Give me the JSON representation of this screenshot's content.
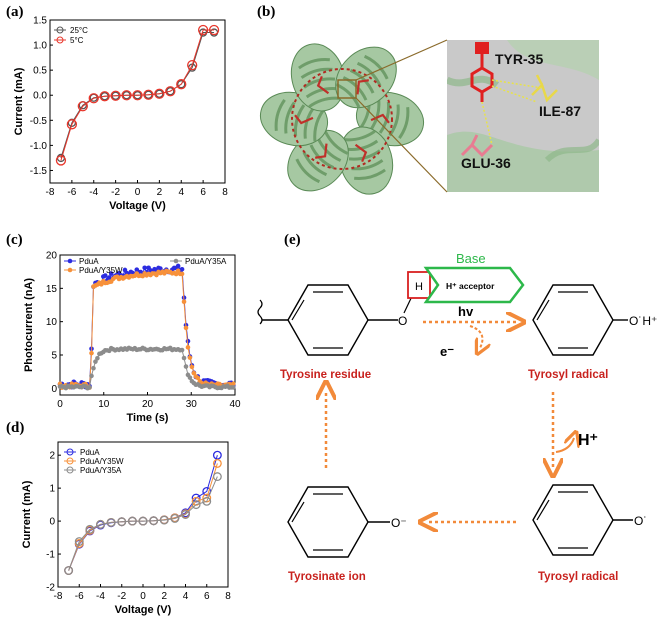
{
  "labels": {
    "a": "(a)",
    "b": "(b)",
    "c": "(c)",
    "d": "(d)",
    "e": "(e)"
  },
  "chart_data": [
    {
      "id": "a",
      "type": "line",
      "xlabel": "Voltage (V)",
      "ylabel": "Current (mA)",
      "xlim": [
        -8,
        8
      ],
      "ylim": [
        -1.75,
        1.5
      ],
      "xticks": [
        -8,
        -6,
        -4,
        -2,
        0,
        2,
        4,
        6,
        8
      ],
      "yticks": [
        -1.5,
        -1.0,
        -0.5,
        0.0,
        0.5,
        1.0,
        1.5
      ],
      "yticklabels": [
        "-1.5",
        "-1.0",
        "-0.5",
        "0.0",
        "0.5",
        "1.0",
        "1.5"
      ],
      "legend": "top-left",
      "x": [
        -7,
        -6,
        -5,
        -4,
        -3,
        -2,
        -1,
        0,
        1,
        2,
        3,
        4,
        5,
        6,
        7
      ],
      "series": [
        {
          "name": "25°C",
          "color": "#555555",
          "values": [
            -1.25,
            -0.55,
            -0.2,
            -0.05,
            -0.02,
            -0.01,
            0.0,
            0.0,
            0.01,
            0.03,
            0.08,
            0.22,
            0.55,
            1.25,
            1.25
          ]
        },
        {
          "name": "5°C",
          "color": "#e8362b",
          "values": [
            -1.3,
            -0.58,
            -0.22,
            -0.06,
            -0.02,
            -0.01,
            0.0,
            0.0,
            0.01,
            0.03,
            0.08,
            0.22,
            0.6,
            1.3,
            1.3
          ]
        }
      ]
    },
    {
      "id": "c",
      "type": "line",
      "xlabel": "Time (s)",
      "ylabel": "Photocurrent (nA)",
      "xlim": [
        0,
        40
      ],
      "ylim": [
        -1,
        20
      ],
      "xticks": [
        0,
        10,
        20,
        30,
        40
      ],
      "yticks": [
        0,
        5,
        10,
        15,
        20
      ],
      "legend": "top",
      "series": [
        {
          "name": "PduA",
          "color": "#2c2ce0",
          "plateau": 18.0,
          "base": 0.6,
          "noise": 0.5
        },
        {
          "name": "PduA/Y35W",
          "color": "#f7913a",
          "plateau": 17.5,
          "base": 0.4,
          "noise": 0.3
        },
        {
          "name": "PduA/Y35A",
          "color": "#8c8c8c",
          "plateau": 5.9,
          "base": 0.2,
          "noise": 0.2
        }
      ],
      "light_on": 7,
      "light_off": 28
    },
    {
      "id": "d",
      "type": "line",
      "xlabel": "Voltage (V)",
      "ylabel": "Current (mA)",
      "xlim": [
        -8,
        8
      ],
      "ylim": [
        -2,
        2.4
      ],
      "xticks": [
        -8,
        -6,
        -4,
        -2,
        0,
        2,
        4,
        6,
        8
      ],
      "yticks": [
        -2,
        -1,
        0,
        1,
        2
      ],
      "legend": "top-left",
      "x": [
        -7,
        -6,
        -5,
        -4,
        -3,
        -2,
        -1,
        0,
        1,
        2,
        3,
        4,
        5,
        6,
        7
      ],
      "series": [
        {
          "name": "PduA",
          "color": "#2c2ce0",
          "values": [
            -1.5,
            -0.7,
            -0.3,
            -0.12,
            -0.05,
            -0.02,
            0.0,
            0.0,
            0.01,
            0.04,
            0.1,
            0.25,
            0.7,
            0.9,
            2.0
          ]
        },
        {
          "name": "PduA/Y35W",
          "color": "#f7913a",
          "values": [
            -1.5,
            -0.68,
            -0.28,
            -0.1,
            -0.04,
            -0.02,
            0.0,
            0.0,
            0.01,
            0.04,
            0.1,
            0.22,
            0.6,
            0.7,
            1.75
          ]
        },
        {
          "name": "PduA/Y35A",
          "color": "#8c8c8c",
          "values": [
            -1.5,
            -0.62,
            -0.25,
            -0.1,
            -0.04,
            -0.02,
            0.0,
            0.0,
            0.01,
            0.03,
            0.08,
            0.2,
            0.5,
            0.6,
            1.35
          ]
        }
      ]
    }
  ],
  "structure": {
    "tyr": "TYR-35",
    "ile": "ILE-87",
    "glu": "GLU-36"
  },
  "scheme": {
    "base": "Base",
    "acceptor": "H⁺ acceptor",
    "h": "H",
    "o": "O",
    "o_radical_h": "O˙H⁺",
    "o_radical": "O˙",
    "o_minus": "O⁻",
    "hv": "hv",
    "e": "e⁻",
    "hplus": "H⁺",
    "tyrosine_residue": "Tyrosine residue",
    "tyrosyl_radical_1": "Tyrosyl radical",
    "tyrosyl_radical_2": "Tyrosyl radical",
    "tyrosinate_ion": "Tyrosinate ion"
  }
}
